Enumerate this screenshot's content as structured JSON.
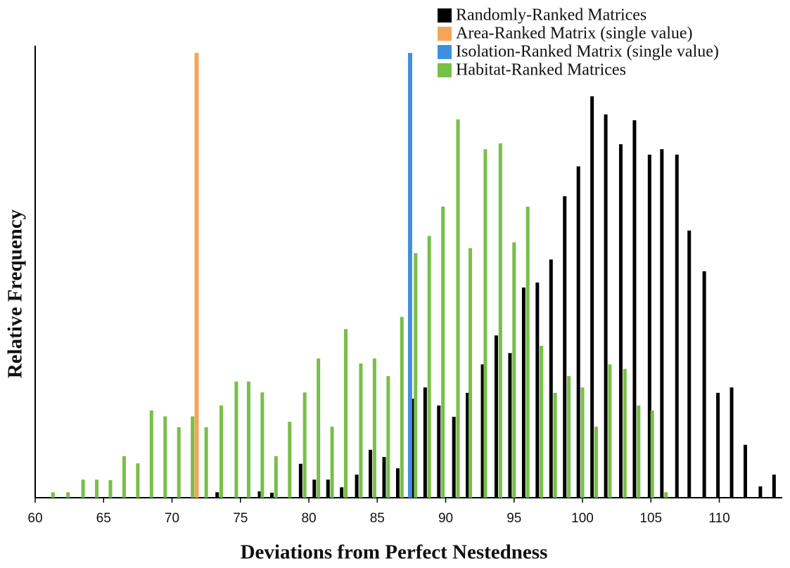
{
  "chart_data": {
    "type": "bar",
    "x_label": "Deviations from Perfect Nestedness",
    "y_label": "Relative Frequency",
    "xlim": [
      60,
      114.6
    ],
    "ylim": [
      0,
      100
    ],
    "xticks": [
      60,
      65,
      70,
      75,
      80,
      85,
      90,
      95,
      100,
      105,
      110
    ],
    "legend": "top-right",
    "series": [
      {
        "name": "Randomly-Ranked Matrices",
        "color": "#000000",
        "x": [
          73.3,
          76.4,
          77.3,
          79.4,
          80.4,
          81.4,
          82.4,
          83.5,
          84.5,
          85.5,
          86.5,
          87.6,
          88.5,
          89.5,
          90.6,
          91.6,
          92.7,
          93.7,
          94.7,
          95.7,
          96.7,
          97.7,
          98.7,
          99.7,
          100.7,
          101.7,
          102.8,
          103.8,
          104.9,
          105.8,
          106.9,
          107.8,
          108.9,
          109.9,
          110.9,
          111.9,
          113.0,
          114.0
        ],
        "values": [
          1.2,
          1.4,
          1.1,
          7.5,
          4.0,
          4.0,
          2.3,
          5.1,
          10.6,
          9.0,
          6.5,
          21.9,
          24.4,
          20.4,
          17.9,
          23.2,
          29.5,
          35.9,
          32.0,
          46.5,
          47.6,
          52.7,
          66.7,
          73.3,
          88.8,
          84.8,
          78.2,
          83.5,
          75.9,
          77.1,
          75.9,
          59.1,
          50.1,
          23.2,
          24.4,
          11.7,
          2.5,
          5.1
        ]
      },
      {
        "name": "Area-Ranked Matrix (single value)",
        "color": "#f5a55a",
        "x": [
          71.8
        ],
        "values": [
          98.4
        ]
      },
      {
        "name": "Isolation-Ranked Matrix (single value)",
        "color": "#3f8fe0",
        "x": [
          87.4
        ],
        "values": [
          98.4
        ]
      },
      {
        "name": "Habitat-Ranked Matrices",
        "color": "#78bf48",
        "x": [
          61.3,
          62.4,
          63.5,
          64.5,
          65.5,
          66.5,
          67.5,
          68.5,
          69.5,
          70.5,
          71.5,
          72.5,
          73.6,
          74.7,
          75.6,
          76.6,
          77.6,
          78.6,
          79.7,
          80.7,
          81.7,
          82.7,
          83.8,
          84.8,
          85.8,
          86.8,
          87.8,
          88.8,
          89.8,
          90.9,
          91.8,
          92.9,
          94.0,
          95.0,
          96.0,
          97.0,
          98.0,
          99.0,
          100.0,
          101.0,
          102.0,
          103.1,
          104.1,
          105.1,
          106.1
        ],
        "values": [
          1.2,
          1.2,
          4.0,
          4.0,
          3.9,
          9.2,
          7.6,
          19.3,
          18.0,
          15.6,
          18.0,
          15.6,
          20.4,
          25.7,
          25.7,
          23.3,
          9.2,
          16.8,
          23.3,
          30.8,
          15.7,
          37.3,
          29.7,
          30.8,
          26.9,
          40.0,
          54.1,
          57.9,
          64.4,
          83.7,
          55.2,
          77.1,
          78.4,
          56.5,
          64.4,
          33.6,
          23.2,
          26.9,
          24.4,
          15.7,
          29.5,
          28.5,
          20.4,
          19.3,
          1.2
        ]
      }
    ]
  }
}
